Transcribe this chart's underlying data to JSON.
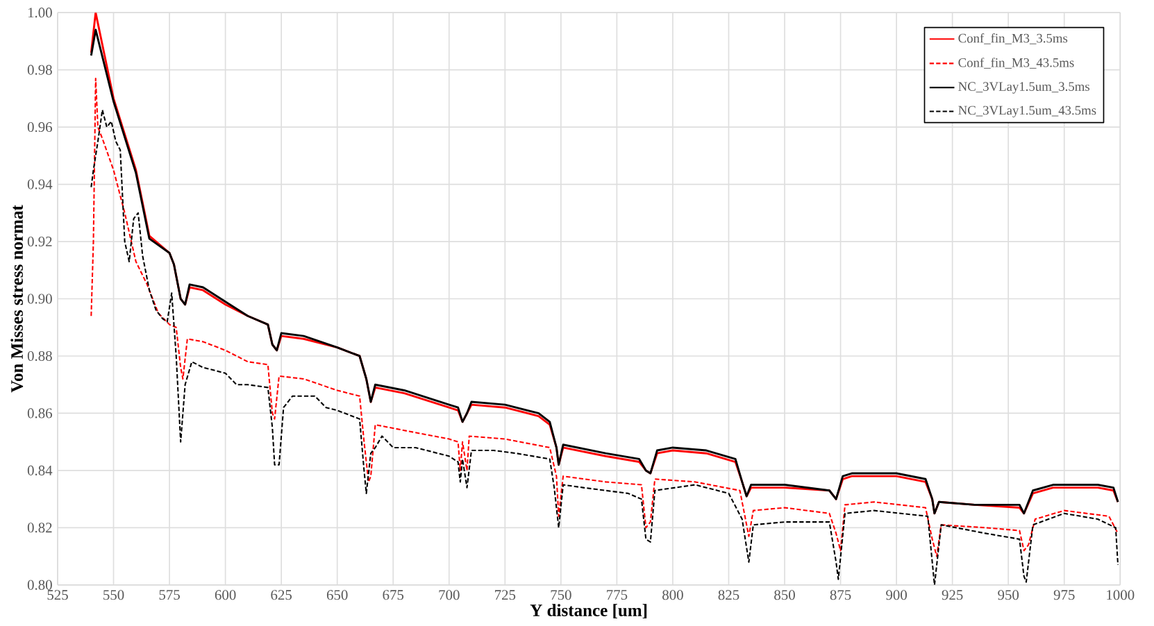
{
  "chart_data": {
    "type": "line",
    "xlabel": "Y distance [um]",
    "ylabel": "Von Misses stress normat",
    "xlim": [
      525,
      1000
    ],
    "ylim": [
      0.8,
      1.0
    ],
    "xticks": [
      525,
      550,
      575,
      600,
      625,
      650,
      675,
      700,
      725,
      750,
      775,
      800,
      825,
      850,
      875,
      900,
      925,
      950,
      975,
      1000
    ],
    "yticks": [
      {
        "value": 0.8,
        "label": "0.80"
      },
      0.82,
      0.84,
      0.86,
      0.88,
      {
        "value": 0.9,
        "label": "0.90"
      },
      0.92,
      0.94,
      0.96,
      0.98,
      {
        "value": 1.0,
        "label": "1.00"
      }
    ],
    "grid": true,
    "legend": "top right",
    "marker": "none",
    "series": [
      {
        "name": "Conf_fin_M3_3.5ms",
        "color": "#ff0000",
        "line_style": "solid",
        "x": [
          540,
          542,
          550,
          560,
          566,
          575,
          577,
          580,
          582,
          584,
          590,
          600,
          610,
          619,
          621,
          623,
          625,
          635,
          650,
          660,
          663,
          665,
          667,
          680,
          700,
          704,
          706,
          708,
          710,
          725,
          740,
          745,
          748,
          749,
          751,
          770,
          785,
          788,
          790,
          793,
          800,
          815,
          828,
          831,
          833,
          835,
          850,
          870,
          873,
          876,
          880,
          900,
          913,
          916,
          917,
          919,
          935,
          955,
          957,
          961,
          970,
          990,
          997,
          999
        ],
        "values": [
          0.986,
          1.0,
          0.97,
          0.945,
          0.922,
          0.916,
          0.912,
          0.9,
          0.898,
          0.904,
          0.903,
          0.898,
          0.894,
          0.891,
          0.884,
          0.882,
          0.887,
          0.886,
          0.883,
          0.88,
          0.872,
          0.864,
          0.869,
          0.867,
          0.862,
          0.861,
          0.857,
          0.86,
          0.863,
          0.862,
          0.859,
          0.856,
          0.848,
          0.842,
          0.848,
          0.845,
          0.843,
          0.84,
          0.839,
          0.846,
          0.847,
          0.846,
          0.843,
          0.836,
          0.831,
          0.834,
          0.834,
          0.833,
          0.83,
          0.837,
          0.838,
          0.838,
          0.836,
          0.83,
          0.825,
          0.829,
          0.828,
          0.827,
          0.825,
          0.832,
          0.834,
          0.834,
          0.833,
          0.829
        ]
      },
      {
        "name": "Conf_fin_M3_43.5ms",
        "color": "#ff0000",
        "line_style": "dashed",
        "x": [
          540,
          541,
          542,
          543,
          545,
          550,
          555,
          560,
          565,
          570,
          575,
          578,
          580,
          581,
          583,
          590,
          600,
          610,
          619,
          621,
          622,
          624,
          635,
          650,
          660,
          662,
          664,
          665,
          667,
          680,
          700,
          704,
          705,
          706,
          708,
          709,
          725,
          745,
          748,
          749,
          751,
          770,
          786,
          788,
          790,
          792,
          810,
          830,
          832,
          834,
          836,
          850,
          870,
          873,
          875,
          877,
          890,
          913,
          916,
          918,
          920,
          940,
          955,
          957,
          959,
          962,
          975,
          995,
          999
        ],
        "values": [
          0.894,
          0.92,
          0.977,
          0.96,
          0.956,
          0.945,
          0.93,
          0.913,
          0.905,
          0.895,
          0.891,
          0.89,
          0.876,
          0.872,
          0.886,
          0.885,
          0.882,
          0.878,
          0.877,
          0.86,
          0.858,
          0.873,
          0.872,
          0.868,
          0.866,
          0.85,
          0.836,
          0.838,
          0.856,
          0.854,
          0.851,
          0.85,
          0.84,
          0.85,
          0.84,
          0.852,
          0.851,
          0.848,
          0.838,
          0.824,
          0.838,
          0.836,
          0.835,
          0.82,
          0.822,
          0.837,
          0.836,
          0.833,
          0.825,
          0.817,
          0.826,
          0.827,
          0.825,
          0.818,
          0.812,
          0.828,
          0.829,
          0.827,
          0.816,
          0.81,
          0.821,
          0.82,
          0.819,
          0.812,
          0.814,
          0.823,
          0.826,
          0.824,
          0.818
        ]
      },
      {
        "name": "NC_3VLay1.5um_3.5ms",
        "color": "#000000",
        "line_style": "solid",
        "x": [
          540,
          542,
          550,
          560,
          566,
          575,
          577,
          580,
          582,
          584,
          590,
          600,
          610,
          619,
          621,
          623,
          625,
          635,
          650,
          660,
          663,
          665,
          667,
          680,
          700,
          704,
          706,
          708,
          710,
          725,
          740,
          745,
          748,
          749,
          751,
          770,
          785,
          788,
          790,
          793,
          800,
          815,
          828,
          831,
          833,
          835,
          850,
          870,
          873,
          876,
          880,
          900,
          913,
          916,
          917,
          919,
          935,
          955,
          957,
          961,
          970,
          990,
          997,
          999
        ],
        "values": [
          0.985,
          0.994,
          0.969,
          0.944,
          0.921,
          0.916,
          0.912,
          0.9,
          0.898,
          0.905,
          0.904,
          0.899,
          0.894,
          0.891,
          0.884,
          0.882,
          0.888,
          0.887,
          0.883,
          0.88,
          0.872,
          0.864,
          0.87,
          0.868,
          0.863,
          0.862,
          0.857,
          0.86,
          0.864,
          0.863,
          0.86,
          0.857,
          0.848,
          0.842,
          0.849,
          0.846,
          0.844,
          0.84,
          0.839,
          0.847,
          0.848,
          0.847,
          0.844,
          0.836,
          0.831,
          0.835,
          0.835,
          0.833,
          0.83,
          0.838,
          0.839,
          0.839,
          0.837,
          0.83,
          0.825,
          0.829,
          0.828,
          0.828,
          0.825,
          0.833,
          0.835,
          0.835,
          0.834,
          0.829
        ]
      },
      {
        "name": "NC_3VLay1.5um_43.5ms",
        "color": "#000000",
        "line_style": "dashed",
        "x": [
          540,
          541,
          543,
          545,
          547,
          549,
          551,
          553,
          555,
          557,
          559,
          561,
          563,
          566,
          569,
          572,
          574,
          576,
          578,
          580,
          582,
          585,
          590,
          600,
          605,
          610,
          619,
          621,
          622,
          624,
          626,
          630,
          640,
          645,
          650,
          660,
          662,
          663,
          665,
          667,
          670,
          675,
          685,
          700,
          704,
          705,
          706,
          708,
          710,
          720,
          730,
          745,
          747,
          749,
          751,
          760,
          780,
          786,
          788,
          790,
          792,
          810,
          825,
          831,
          834,
          836,
          850,
          870,
          873,
          874,
          877,
          890,
          914,
          916,
          917,
          920,
          940,
          955,
          957,
          958,
          961,
          975,
          990,
          998,
          999
        ],
        "values": [
          0.939,
          0.945,
          0.955,
          0.966,
          0.96,
          0.962,
          0.955,
          0.952,
          0.92,
          0.913,
          0.928,
          0.93,
          0.915,
          0.903,
          0.896,
          0.893,
          0.892,
          0.902,
          0.88,
          0.85,
          0.87,
          0.878,
          0.876,
          0.874,
          0.87,
          0.87,
          0.869,
          0.855,
          0.842,
          0.842,
          0.862,
          0.866,
          0.866,
          0.862,
          0.861,
          0.858,
          0.84,
          0.832,
          0.846,
          0.848,
          0.852,
          0.848,
          0.848,
          0.845,
          0.843,
          0.836,
          0.844,
          0.834,
          0.847,
          0.847,
          0.846,
          0.844,
          0.834,
          0.82,
          0.835,
          0.834,
          0.832,
          0.83,
          0.816,
          0.815,
          0.833,
          0.835,
          0.832,
          0.823,
          0.808,
          0.821,
          0.822,
          0.822,
          0.808,
          0.802,
          0.825,
          0.826,
          0.824,
          0.808,
          0.8,
          0.821,
          0.818,
          0.816,
          0.803,
          0.801,
          0.821,
          0.825,
          0.823,
          0.82,
          0.807
        ]
      }
    ]
  }
}
